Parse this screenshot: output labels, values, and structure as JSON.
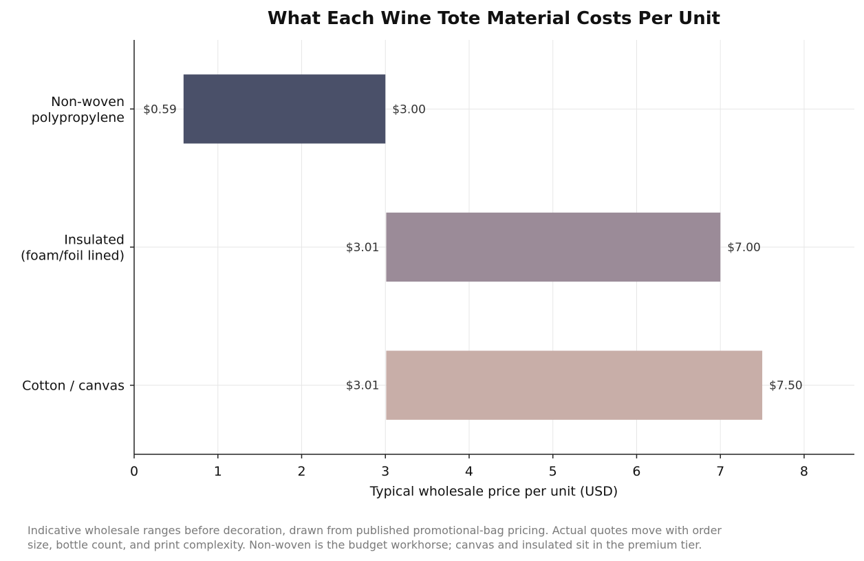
{
  "chart_data": {
    "type": "bar",
    "orientation": "horizontal",
    "title": "What Each Wine Tote Material Costs Per Unit",
    "xlabel": "Typical wholesale price per unit (USD)",
    "ylabel": "",
    "xlim": [
      0,
      8.6
    ],
    "xticks": [
      0,
      1,
      2,
      3,
      4,
      5,
      6,
      7,
      8
    ],
    "grid": true,
    "categories": [
      [
        "Non-woven",
        "polypropylene"
      ],
      [
        "Insulated",
        "(foam/foil lined)"
      ],
      [
        "Cotton / canvas"
      ]
    ],
    "ranges": [
      {
        "low": 0.59,
        "high": 3.0,
        "low_label": "$0.59",
        "high_label": "$3.00",
        "color": "#4a5069"
      },
      {
        "low": 3.01,
        "high": 7.0,
        "low_label": "$3.01",
        "high_label": "$7.00",
        "color": "#9b8b98"
      },
      {
        "low": 3.01,
        "high": 7.5,
        "low_label": "$3.01",
        "high_label": "$7.50",
        "color": "#c8aea8"
      }
    ]
  },
  "footnote": {
    "lines": [
      "Indicative wholesale ranges before decoration, drawn from published promotional-bag pricing. Actual quotes move with order",
      "size, bottle count, and print complexity. Non-woven is the budget workhorse; canvas and insulated sit in the premium tier."
    ]
  }
}
